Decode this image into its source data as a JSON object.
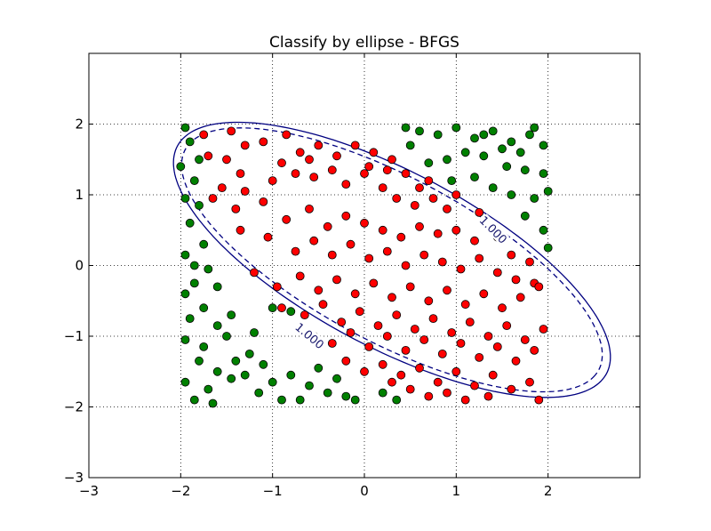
{
  "chart_data": {
    "type": "scatter",
    "title": "Classify by ellipse - BFGS",
    "xlabel": "",
    "ylabel": "",
    "xlim": [
      -3,
      3
    ],
    "ylim": [
      -3,
      3
    ],
    "x_ticks": [
      -3,
      -2,
      -1,
      0,
      1,
      2
    ],
    "y_ticks": [
      -3,
      -2,
      -1,
      0,
      1,
      2
    ],
    "x_tick_labels": [
      "−3",
      "−2",
      "−1",
      "0",
      "1",
      "2"
    ],
    "y_tick_labels": [
      "−3",
      "−2",
      "−1",
      "0",
      "1",
      "2"
    ],
    "grid": true,
    "grid_style": "dotted",
    "x_tick_max": 2,
    "y_tick_max": 2,
    "colors": {
      "inside": "#ff0000",
      "outside": "#008000",
      "contour": "#000080"
    },
    "series": [
      {
        "color": "#ff0000",
        "points": [
          [
            -1.75,
            1.85
          ],
          [
            -1.45,
            1.9
          ],
          [
            -1.3,
            1.7
          ],
          [
            -1.1,
            1.75
          ],
          [
            -0.85,
            1.85
          ],
          [
            -0.7,
            1.6
          ],
          [
            -0.5,
            1.7
          ],
          [
            -0.3,
            1.55
          ],
          [
            -0.1,
            1.7
          ],
          [
            0.1,
            1.6
          ],
          [
            0.3,
            1.5
          ],
          [
            0.45,
            1.3
          ],
          [
            0.6,
            1.1
          ],
          [
            -1.7,
            1.55
          ],
          [
            -1.5,
            1.5
          ],
          [
            -1.35,
            1.3
          ],
          [
            -1.55,
            1.1
          ],
          [
            -1.3,
            1.05
          ],
          [
            -1.0,
            1.2
          ],
          [
            -0.75,
            1.3
          ],
          [
            -0.55,
            1.25
          ],
          [
            -0.35,
            1.35
          ],
          [
            -0.2,
            1.15
          ],
          [
            0.0,
            1.3
          ],
          [
            0.2,
            1.1
          ],
          [
            0.35,
            0.95
          ],
          [
            0.55,
            0.85
          ],
          [
            0.75,
            0.95
          ],
          [
            0.9,
            0.8
          ],
          [
            -1.65,
            0.95
          ],
          [
            -1.4,
            0.8
          ],
          [
            -1.1,
            0.9
          ],
          [
            -0.85,
            0.65
          ],
          [
            -0.6,
            0.8
          ],
          [
            -0.4,
            0.55
          ],
          [
            -0.2,
            0.7
          ],
          [
            0.0,
            0.6
          ],
          [
            0.2,
            0.5
          ],
          [
            0.4,
            0.4
          ],
          [
            0.6,
            0.55
          ],
          [
            0.8,
            0.45
          ],
          [
            1.0,
            0.5
          ],
          [
            1.2,
            0.35
          ],
          [
            -1.35,
            0.5
          ],
          [
            -1.05,
            0.4
          ],
          [
            -0.75,
            0.2
          ],
          [
            -0.55,
            0.35
          ],
          [
            -0.35,
            0.15
          ],
          [
            -0.15,
            0.3
          ],
          [
            0.05,
            0.1
          ],
          [
            0.25,
            0.2
          ],
          [
            0.45,
            0.0
          ],
          [
            0.65,
            0.15
          ],
          [
            0.85,
            0.05
          ],
          [
            1.05,
            -0.05
          ],
          [
            1.25,
            0.1
          ],
          [
            1.45,
            -0.1
          ],
          [
            1.65,
            -0.2
          ],
          [
            1.85,
            -0.25
          ],
          [
            -1.2,
            -0.1
          ],
          [
            -0.95,
            -0.3
          ],
          [
            -0.7,
            -0.15
          ],
          [
            -0.5,
            -0.35
          ],
          [
            -0.3,
            -0.2
          ],
          [
            -0.1,
            -0.4
          ],
          [
            0.1,
            -0.25
          ],
          [
            0.3,
            -0.45
          ],
          [
            0.5,
            -0.3
          ],
          [
            0.7,
            -0.5
          ],
          [
            0.9,
            -0.35
          ],
          [
            1.1,
            -0.55
          ],
          [
            1.3,
            -0.4
          ],
          [
            1.5,
            -0.6
          ],
          [
            1.7,
            -0.45
          ],
          [
            1.9,
            -0.3
          ],
          [
            -0.9,
            -0.6
          ],
          [
            -0.65,
            -0.7
          ],
          [
            -0.45,
            -0.55
          ],
          [
            -0.25,
            -0.8
          ],
          [
            -0.05,
            -0.65
          ],
          [
            0.15,
            -0.85
          ],
          [
            0.35,
            -0.7
          ],
          [
            0.55,
            -0.9
          ],
          [
            0.75,
            -0.75
          ],
          [
            0.95,
            -0.95
          ],
          [
            1.15,
            -0.8
          ],
          [
            1.35,
            -1.0
          ],
          [
            1.55,
            -0.85
          ],
          [
            1.75,
            -1.05
          ],
          [
            1.95,
            -0.9
          ],
          [
            -0.55,
            -1.0
          ],
          [
            -0.35,
            -1.1
          ],
          [
            -0.15,
            -0.95
          ],
          [
            0.05,
            -1.15
          ],
          [
            0.25,
            -1.0
          ],
          [
            0.45,
            -1.2
          ],
          [
            0.65,
            -1.05
          ],
          [
            0.85,
            -1.25
          ],
          [
            1.05,
            -1.1
          ],
          [
            1.25,
            -1.3
          ],
          [
            1.45,
            -1.15
          ],
          [
            1.65,
            -1.35
          ],
          [
            1.85,
            -1.2
          ],
          [
            -0.2,
            -1.35
          ],
          [
            0.0,
            -1.5
          ],
          [
            0.2,
            -1.4
          ],
          [
            0.4,
            -1.55
          ],
          [
            0.6,
            -1.45
          ],
          [
            0.8,
            -1.65
          ],
          [
            1.0,
            -1.5
          ],
          [
            1.2,
            -1.7
          ],
          [
            1.4,
            -1.55
          ],
          [
            1.6,
            -1.75
          ],
          [
            1.8,
            -1.65
          ],
          [
            0.5,
            -1.75
          ],
          [
            0.7,
            -1.85
          ],
          [
            0.9,
            -1.8
          ],
          [
            1.1,
            -1.9
          ],
          [
            1.35,
            -1.85
          ],
          [
            1.9,
            -1.9
          ],
          [
            0.3,
            -1.65
          ],
          [
            -0.6,
            1.5
          ],
          [
            -0.9,
            1.45
          ],
          [
            0.05,
            1.4
          ],
          [
            0.25,
            1.35
          ],
          [
            0.7,
            1.2
          ],
          [
            1.0,
            1.0
          ],
          [
            1.25,
            0.75
          ],
          [
            1.45,
            0.4
          ],
          [
            1.6,
            0.15
          ],
          [
            1.8,
            0.05
          ]
        ]
      },
      {
        "color": "#008000",
        "points": [
          [
            -1.95,
            1.95
          ],
          [
            -1.9,
            1.75
          ],
          [
            -1.8,
            1.5
          ],
          [
            -2.0,
            1.4
          ],
          [
            -1.85,
            1.2
          ],
          [
            -1.95,
            0.95
          ],
          [
            -1.8,
            0.85
          ],
          [
            -1.9,
            0.6
          ],
          [
            -1.75,
            0.3
          ],
          [
            -1.95,
            0.15
          ],
          [
            -1.7,
            -0.05
          ],
          [
            -1.85,
            -0.25
          ],
          [
            -1.95,
            -0.4
          ],
          [
            -1.6,
            -0.3
          ],
          [
            -1.75,
            -0.6
          ],
          [
            -1.9,
            -0.75
          ],
          [
            -1.6,
            -0.85
          ],
          [
            -1.95,
            -1.05
          ],
          [
            -1.75,
            -1.15
          ],
          [
            -1.5,
            -1.0
          ],
          [
            -1.8,
            -1.35
          ],
          [
            -1.6,
            -1.5
          ],
          [
            -1.95,
            -1.65
          ],
          [
            -1.7,
            -1.75
          ],
          [
            -1.45,
            -1.6
          ],
          [
            -1.85,
            -1.9
          ],
          [
            -1.65,
            -1.95
          ],
          [
            -1.3,
            -1.55
          ],
          [
            -1.25,
            -1.25
          ],
          [
            -1.4,
            -1.35
          ],
          [
            -1.1,
            -1.4
          ],
          [
            -1.0,
            -1.65
          ],
          [
            -0.8,
            -1.55
          ],
          [
            -0.6,
            -1.7
          ],
          [
            -0.4,
            -1.8
          ],
          [
            -0.2,
            -1.85
          ],
          [
            -0.5,
            -1.45
          ],
          [
            -0.3,
            -1.6
          ],
          [
            -1.15,
            -1.8
          ],
          [
            -0.9,
            -1.9
          ],
          [
            -0.7,
            -1.9
          ],
          [
            -1.45,
            -0.7
          ],
          [
            -1.2,
            -0.95
          ],
          [
            -1.0,
            -0.6
          ],
          [
            -0.8,
            -0.65
          ],
          [
            0.2,
            -1.8
          ],
          [
            0.35,
            -1.9
          ],
          [
            -0.1,
            -1.9
          ],
          [
            0.45,
            1.95
          ],
          [
            0.6,
            1.9
          ],
          [
            0.8,
            1.85
          ],
          [
            1.0,
            1.95
          ],
          [
            1.2,
            1.8
          ],
          [
            1.4,
            1.9
          ],
          [
            1.6,
            1.75
          ],
          [
            1.8,
            1.85
          ],
          [
            1.95,
            1.7
          ],
          [
            1.7,
            1.6
          ],
          [
            1.5,
            1.65
          ],
          [
            1.3,
            1.55
          ],
          [
            1.1,
            1.6
          ],
          [
            0.9,
            1.5
          ],
          [
            0.7,
            1.45
          ],
          [
            1.55,
            1.4
          ],
          [
            1.75,
            1.35
          ],
          [
            1.95,
            1.3
          ],
          [
            1.2,
            1.25
          ],
          [
            0.95,
            1.2
          ],
          [
            1.4,
            1.1
          ],
          [
            1.6,
            1.0
          ],
          [
            1.85,
            0.95
          ],
          [
            2.0,
            1.05
          ],
          [
            1.75,
            0.7
          ],
          [
            1.95,
            0.5
          ],
          [
            2.0,
            0.25
          ],
          [
            1.3,
            1.85
          ],
          [
            0.5,
            1.7
          ],
          [
            1.85,
            1.95
          ],
          [
            -1.85,
            0.0
          ]
        ]
      }
    ],
    "contours": [
      {
        "label": "1.000",
        "style": "solid",
        "center": [
          0.3,
          0.08
        ],
        "semi_axes": [
          2.85,
          1.15
        ],
        "angle_deg": -37
      },
      {
        "label": "",
        "style": "dashed",
        "center": [
          0.3,
          0.08
        ],
        "semi_axes": [
          2.75,
          1.08
        ],
        "angle_deg": -37
      }
    ],
    "contour_labels": [
      {
        "text": "1.000",
        "x": 1.4,
        "y": 0.5,
        "angle_deg": 45
      },
      {
        "text": "1.000",
        "x": -0.6,
        "y": -1.0,
        "angle_deg": 40
      }
    ]
  }
}
